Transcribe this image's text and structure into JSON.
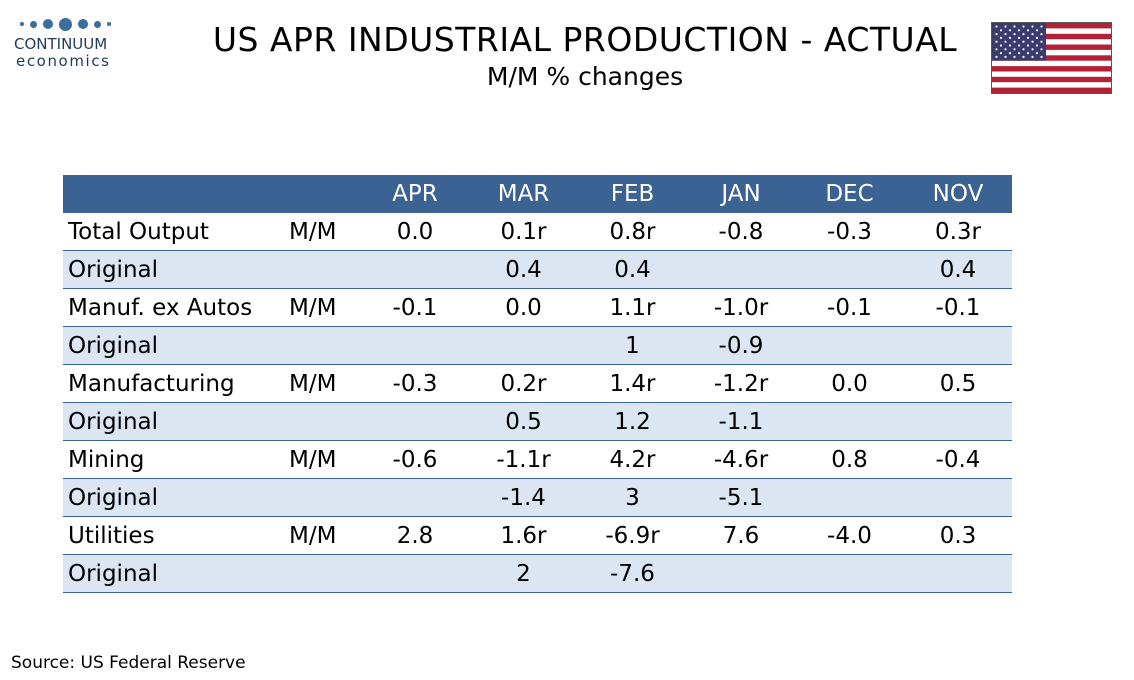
{
  "logo": {
    "name": "CONTINUUM",
    "sub": "economics"
  },
  "title": "US APR INDUSTRIAL PRODUCTION - ACTUAL",
  "subtitle": "M/M % changes",
  "columns": [
    "",
    "",
    "APR",
    "MAR",
    "FEB",
    "JAN",
    "DEC",
    "NOV"
  ],
  "rows": [
    {
      "label": "Total Output",
      "measure": "M/M",
      "values": [
        "0.0",
        "0.1r",
        "0.8r",
        "-0.8",
        "-0.3",
        "0.3r"
      ]
    },
    {
      "label": "Original",
      "measure": "",
      "values": [
        "",
        "0.4",
        "0.4",
        "",
        "",
        "0.4"
      ]
    },
    {
      "label": "Manuf. ex Autos",
      "measure": "M/M",
      "values": [
        "-0.1",
        "0.0",
        "1.1r",
        "-1.0r",
        "-0.1",
        "-0.1"
      ]
    },
    {
      "label": "Original",
      "measure": "",
      "values": [
        "",
        "",
        "1",
        "-0.9",
        "",
        ""
      ]
    },
    {
      "label": "Manufacturing",
      "measure": "M/M",
      "values": [
        "-0.3",
        "0.2r",
        "1.4r",
        "-1.2r",
        "0.0",
        "0.5"
      ]
    },
    {
      "label": "Original",
      "measure": "",
      "values": [
        "",
        "0.5",
        "1.2",
        "-1.1",
        "",
        ""
      ]
    },
    {
      "label": "Mining",
      "measure": "M/M",
      "values": [
        "-0.6",
        "-1.1r",
        "4.2r",
        "-4.6r",
        "0.8",
        "-0.4"
      ]
    },
    {
      "label": "Original",
      "measure": "",
      "values": [
        "",
        "-1.4",
        "3",
        "-5.1",
        "",
        ""
      ]
    },
    {
      "label": "Utilities",
      "measure": "M/M",
      "values": [
        "2.8",
        "1.6r",
        "-6.9r",
        "7.6",
        "-4.0",
        "0.3"
      ]
    },
    {
      "label": "Original",
      "measure": "",
      "values": [
        "",
        "2",
        "-7.6",
        "",
        "",
        ""
      ]
    }
  ],
  "source": "Source: US Federal Reserve",
  "colors": {
    "header": "#3a6292",
    "alt_row": "#dce6f2",
    "flag_red": "#b22234",
    "flag_blue": "#3c3b6e"
  },
  "flag_icon": "us-flag-icon"
}
